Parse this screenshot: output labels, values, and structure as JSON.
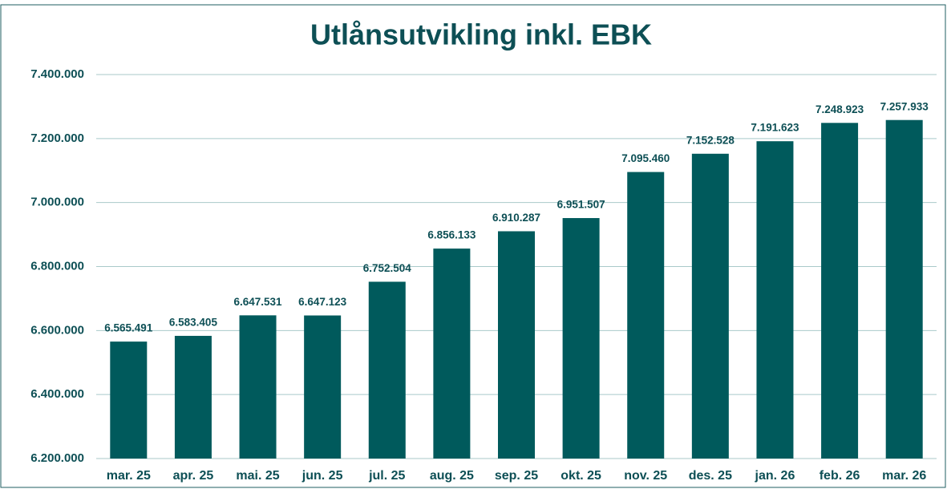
{
  "chart_data": {
    "type": "bar",
    "title": "Utlånsutvikling inkl. EBK",
    "categories": [
      "mar. 25",
      "apr. 25",
      "mai. 25",
      "jun. 25",
      "jul. 25",
      "aug. 25",
      "sep. 25",
      "okt. 25",
      "nov. 25",
      "des. 25",
      "jan. 26",
      "feb. 26",
      "mar. 26"
    ],
    "values": [
      6565491,
      6583405,
      6647531,
      6647123,
      6752504,
      6856133,
      6910287,
      6951507,
      7095460,
      7152528,
      7191623,
      7248923,
      7257933
    ],
    "value_labels": [
      "6.565.491",
      "6.583.405",
      "6.647.531",
      "6.647.123",
      "6.752.504",
      "6.856.133",
      "6.910.287",
      "6.951.507",
      "7.095.460",
      "7.152.528",
      "7.191.623",
      "7.248.923",
      "7.257.933"
    ],
    "color": "#005a5c",
    "ylim": [
      6200000,
      7400000
    ],
    "yticks": [
      {
        "value": 6200000,
        "label": "6.200.000"
      },
      {
        "value": 6400000,
        "label": "6.400.000"
      },
      {
        "value": 6600000,
        "label": "6.600.000"
      },
      {
        "value": 6800000,
        "label": "6.800.000"
      },
      {
        "value": 7000000,
        "label": "7.000.000"
      },
      {
        "value": 7200000,
        "label": "7.200.000"
      },
      {
        "value": 7400000,
        "label": "7.400.000"
      }
    ],
    "grid": true
  }
}
